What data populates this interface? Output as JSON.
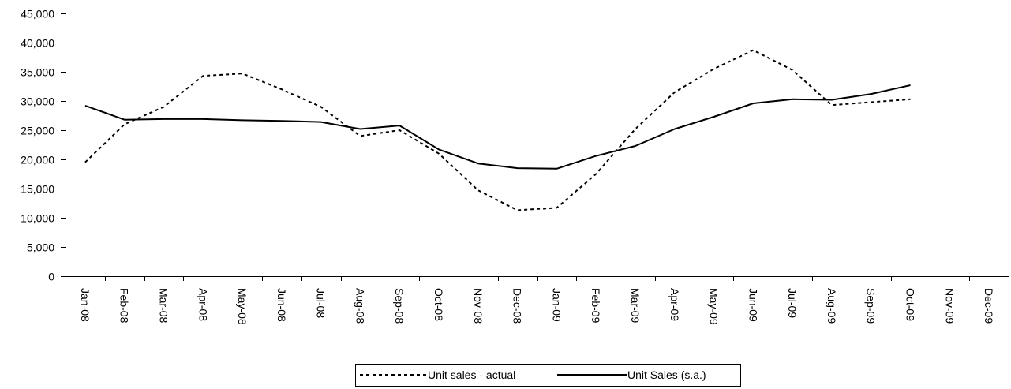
{
  "chart_data": {
    "type": "line",
    "title": "",
    "xlabel": "",
    "ylabel": "",
    "categories": [
      "Jan-08",
      "Feb-08",
      "Mar-08",
      "Apr-08",
      "May-08",
      "Jun-08",
      "Jul-08",
      "Aug-08",
      "Sep-08",
      "Oct-08",
      "Nov-08",
      "Dec-08",
      "Jan-09",
      "Feb-09",
      "Mar-09",
      "Apr-09",
      "May-09",
      "Jun-09",
      "Jul-09",
      "Aug-09",
      "Sep-09",
      "Oct-09",
      "Nov-09",
      "Dec-09"
    ],
    "ylim": [
      0,
      45000
    ],
    "yticks": [
      0,
      5000,
      10000,
      15000,
      20000,
      25000,
      30000,
      35000,
      40000,
      45000
    ],
    "ytick_labels": [
      "0",
      "5,000",
      "10,000",
      "15,000",
      "20,000",
      "25,000",
      "30,000",
      "35,000",
      "40,000",
      "45,000"
    ],
    "grid": false,
    "legend": "bottom-center",
    "series": [
      {
        "name": "Unit sales - actual",
        "style": "dotted",
        "color": "#000000",
        "values": [
          19500,
          26000,
          29000,
          34300,
          34700,
          32000,
          29000,
          24000,
          25000,
          21000,
          14700,
          11300,
          11700,
          17500,
          25200,
          31500,
          35500,
          38700,
          35300,
          29300,
          29800,
          30300,
          null,
          null
        ]
      },
      {
        "name": "Unit Sales (s.a.)",
        "style": "solid",
        "color": "#000000",
        "values": [
          29200,
          26800,
          26900,
          26900,
          26700,
          26600,
          26400,
          25200,
          25800,
          21700,
          19300,
          18500,
          18400,
          20600,
          22300,
          25200,
          27300,
          29600,
          30300,
          30200,
          31200,
          32700,
          null,
          null
        ]
      }
    ]
  }
}
